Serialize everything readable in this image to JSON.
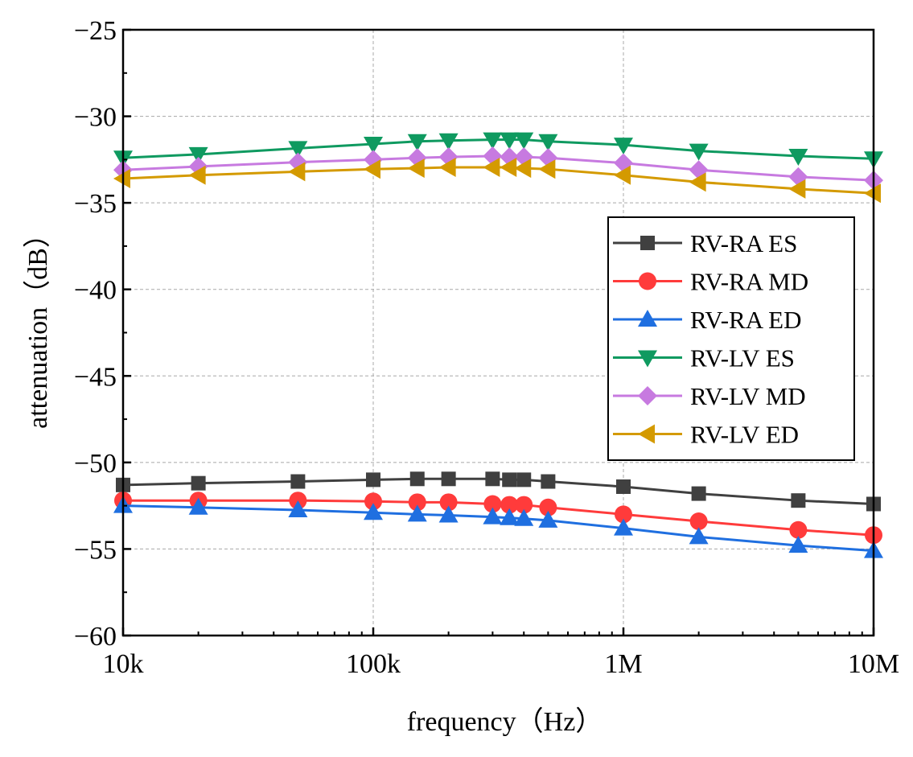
{
  "chart_data": {
    "type": "line",
    "xscale": "log",
    "xlabel": "frequency（Hz）",
    "ylabel": "attenuation（dB）",
    "xlim": [
      10000,
      10000000
    ],
    "ylim": [
      -60,
      -25
    ],
    "grid": true,
    "legend_position": "right",
    "x_ticks": [
      {
        "value": 10000,
        "label": "10k"
      },
      {
        "value": 100000,
        "label": "100k"
      },
      {
        "value": 1000000,
        "label": "1M"
      },
      {
        "value": 10000000,
        "label": "10M"
      }
    ],
    "y_ticks": [
      {
        "value": -25,
        "label": "−25"
      },
      {
        "value": -30,
        "label": "−30"
      },
      {
        "value": -35,
        "label": "−35"
      },
      {
        "value": -40,
        "label": "−40"
      },
      {
        "value": -45,
        "label": "−45"
      },
      {
        "value": -50,
        "label": "−50"
      },
      {
        "value": -55,
        "label": "−55"
      },
      {
        "value": -60,
        "label": "−60"
      }
    ],
    "x": [
      10000,
      20000,
      50000,
      100000,
      150000,
      200000,
      300000,
      350000,
      400000,
      500000,
      1000000,
      2000000,
      5000000,
      10000000
    ],
    "series": [
      {
        "name": "RV-RA ES",
        "color": "#404040",
        "marker": "square",
        "values": [
          -51.3,
          -51.2,
          -51.1,
          -51.0,
          -50.95,
          -50.95,
          -50.95,
          -51.0,
          -51.0,
          -51.1,
          -51.4,
          -51.8,
          -52.2,
          -52.4
        ]
      },
      {
        "name": "RV-RA MD",
        "color": "#ff3b3b",
        "marker": "circle",
        "values": [
          -52.2,
          -52.2,
          -52.2,
          -52.25,
          -52.3,
          -52.3,
          -52.4,
          -52.45,
          -52.45,
          -52.6,
          -53.0,
          -53.4,
          -53.9,
          -54.2
        ]
      },
      {
        "name": "RV-RA ED",
        "color": "#1f6fe0",
        "marker": "triangle-up",
        "values": [
          -52.5,
          -52.6,
          -52.75,
          -52.9,
          -53.0,
          -53.05,
          -53.15,
          -53.2,
          -53.25,
          -53.35,
          -53.8,
          -54.3,
          -54.8,
          -55.1
        ]
      },
      {
        "name": "RV-LV ES",
        "color": "#0f9a60",
        "marker": "triangle-down",
        "values": [
          -32.4,
          -32.2,
          -31.85,
          -31.6,
          -31.45,
          -31.4,
          -31.35,
          -31.35,
          -31.35,
          -31.45,
          -31.65,
          -32.0,
          -32.3,
          -32.45
        ]
      },
      {
        "name": "RV-LV MD",
        "color": "#c77ae0",
        "marker": "diamond",
        "values": [
          -33.1,
          -32.9,
          -32.65,
          -32.5,
          -32.4,
          -32.35,
          -32.3,
          -32.35,
          -32.35,
          -32.4,
          -32.7,
          -33.1,
          -33.5,
          -33.7
        ]
      },
      {
        "name": "RV-LV ED",
        "color": "#d49a00",
        "marker": "triangle-left",
        "values": [
          -33.6,
          -33.4,
          -33.2,
          -33.05,
          -33.0,
          -32.95,
          -32.95,
          -32.95,
          -33.0,
          -33.05,
          -33.4,
          -33.8,
          -34.2,
          -34.45
        ]
      }
    ]
  }
}
